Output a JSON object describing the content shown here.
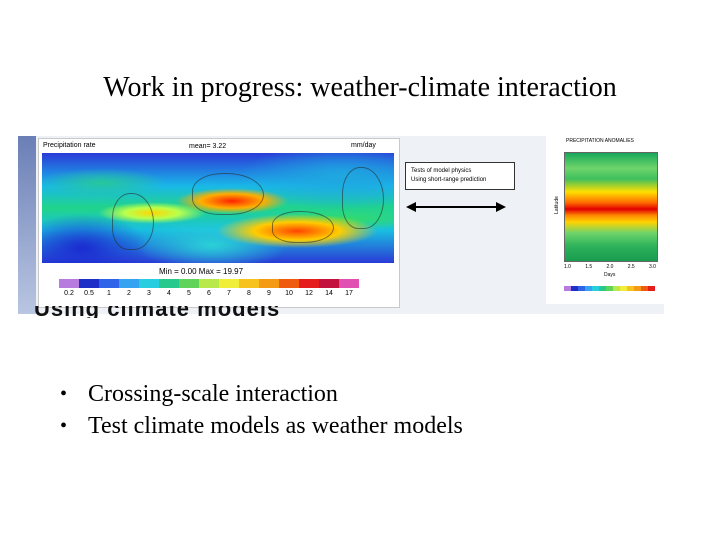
{
  "slide": {
    "title": "Work in progress: weather-climate interaction",
    "bullets": [
      "Crossing-scale interaction",
      "Test climate models as weather models"
    ]
  },
  "figure": {
    "left_panel": {
      "title": "Precipitation rate",
      "mean_text": "mean= 3.22",
      "units": "mm/day",
      "range_text": "Min = 0.00 Max = 19.97",
      "colorbar_ticks": [
        "0.2",
        "0.5",
        "1",
        "2",
        "3",
        "4",
        "5",
        "6",
        "7",
        "8",
        "9",
        "10",
        "12",
        "14",
        "17"
      ],
      "colorbar_colors": [
        "#b77be0",
        "#1e2fc8",
        "#2f64e8",
        "#36a3f0",
        "#29cde0",
        "#27c98d",
        "#5fd35a",
        "#b8e84a",
        "#f1ee3a",
        "#f7c21e",
        "#f49a14",
        "#ef5b0f",
        "#e51d1d",
        "#c4123f",
        "#e04fb1"
      ]
    },
    "middle": {
      "box_line1": "Tests of model physics",
      "box_line2": "Using short-range prediction"
    },
    "right_panel": {
      "title": "PRECIPITATION ANOMALIES",
      "ylabel": "Latitude",
      "xlabel": "Days",
      "x_ticks": [
        "1.0",
        "1.5",
        "2.0",
        "2.5",
        "3.0"
      ]
    },
    "overlap_text": "Using climate models"
  }
}
